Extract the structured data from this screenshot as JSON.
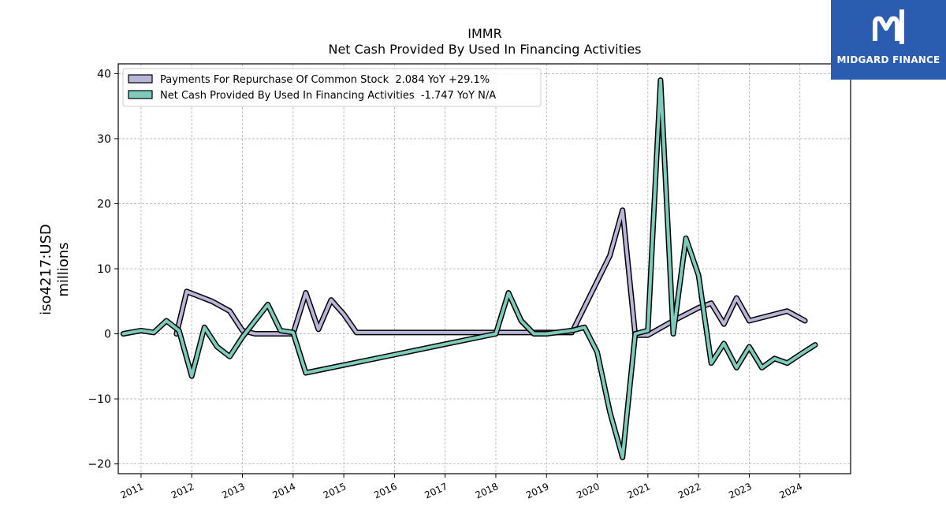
{
  "brand": {
    "name": "MIDGARD FINANCE",
    "icon": "midgard-logo-icon",
    "color": "#2a5db0"
  },
  "chart_data": {
    "type": "line",
    "title": "IMMR",
    "subtitle": "Net Cash Provided By Used In Financing Activities",
    "ylabel_line1": "iso4217:USD",
    "ylabel_line2": "millions",
    "xlim": [
      2010.55,
      2025.0
    ],
    "ylim": [
      -21.5,
      41.5
    ],
    "yticks": [
      -20,
      -10,
      0,
      10,
      20,
      30,
      40
    ],
    "ytick_labels": [
      "−20",
      "−10",
      "0",
      "10",
      "20",
      "30",
      "40"
    ],
    "xticks": [
      2011,
      2012,
      2013,
      2014,
      2015,
      2016,
      2017,
      2018,
      2019,
      2020,
      2021,
      2022,
      2023,
      2024
    ],
    "xtick_labels": [
      "2011",
      "2012",
      "2013",
      "2014",
      "2015",
      "2016",
      "2017",
      "2018",
      "2019",
      "2020",
      "2021",
      "2022",
      "2023",
      "2024"
    ],
    "grid": true,
    "legend_position": "top-left",
    "series": [
      {
        "name": "Payments For Repurchase Of Common Stock  2.084 YoY +29.1%",
        "color": "#b9b5d8",
        "x": [
          2011.7,
          2011.9,
          2012.4,
          2012.75,
          2013.0,
          2013.25,
          2013.5,
          2013.75,
          2014.0,
          2014.25,
          2014.5,
          2014.75,
          2015.0,
          2015.25,
          2015.5,
          2016.0,
          2017.0,
          2018.0,
          2018.25,
          2018.5,
          2018.75,
          2019.0,
          2019.5,
          2020.25,
          2020.5,
          2020.75,
          2021.0,
          2021.5,
          2021.75,
          2022.0,
          2022.25,
          2022.5,
          2022.75,
          2023.0,
          2023.75,
          2024.1
        ],
        "y": [
          0.0,
          6.5,
          5.0,
          3.5,
          0.5,
          0.0,
          0.0,
          0.0,
          0.0,
          6.3,
          0.7,
          5.2,
          3.0,
          0.2,
          0.2,
          0.2,
          0.2,
          0.2,
          0.2,
          0.2,
          0.2,
          0.2,
          0.2,
          12.0,
          19.0,
          -0.2,
          -0.2,
          2.0,
          3.0,
          4.0,
          4.7,
          1.5,
          5.5,
          2.0,
          3.5,
          2.0
        ]
      },
      {
        "name": "Net Cash Provided By Used In Financing Activities  -1.747 YoY N/A",
        "color": "#7ecbbb",
        "x": [
          2010.65,
          2011.0,
          2011.25,
          2011.5,
          2011.75,
          2012.0,
          2012.25,
          2012.5,
          2012.75,
          2013.0,
          2013.25,
          2013.5,
          2013.75,
          2014.0,
          2014.25,
          2015.0,
          2016.0,
          2017.0,
          2018.0,
          2018.25,
          2018.5,
          2018.75,
          2019.0,
          2019.5,
          2019.75,
          2020.0,
          2020.25,
          2020.5,
          2020.75,
          2021.0,
          2021.25,
          2021.5,
          2021.75,
          2022.0,
          2022.25,
          2022.5,
          2022.75,
          2023.0,
          2023.25,
          2023.5,
          2023.75,
          2024.0,
          2024.3
        ],
        "y": [
          0.0,
          0.5,
          0.2,
          2.0,
          0.5,
          -6.5,
          1.0,
          -2.0,
          -3.5,
          -0.5,
          2.0,
          4.5,
          0.5,
          0.2,
          -6.0,
          -4.8,
          -3.2,
          -1.6,
          0.0,
          6.3,
          2.0,
          0.0,
          0.0,
          0.5,
          1.0,
          -2.8,
          -12.0,
          -19.0,
          0.0,
          0.5,
          39.0,
          0.0,
          14.7,
          9.0,
          -4.5,
          -1.5,
          -5.2,
          -2.0,
          -5.2,
          -3.8,
          -4.5,
          -3.2,
          -1.7
        ]
      }
    ]
  }
}
